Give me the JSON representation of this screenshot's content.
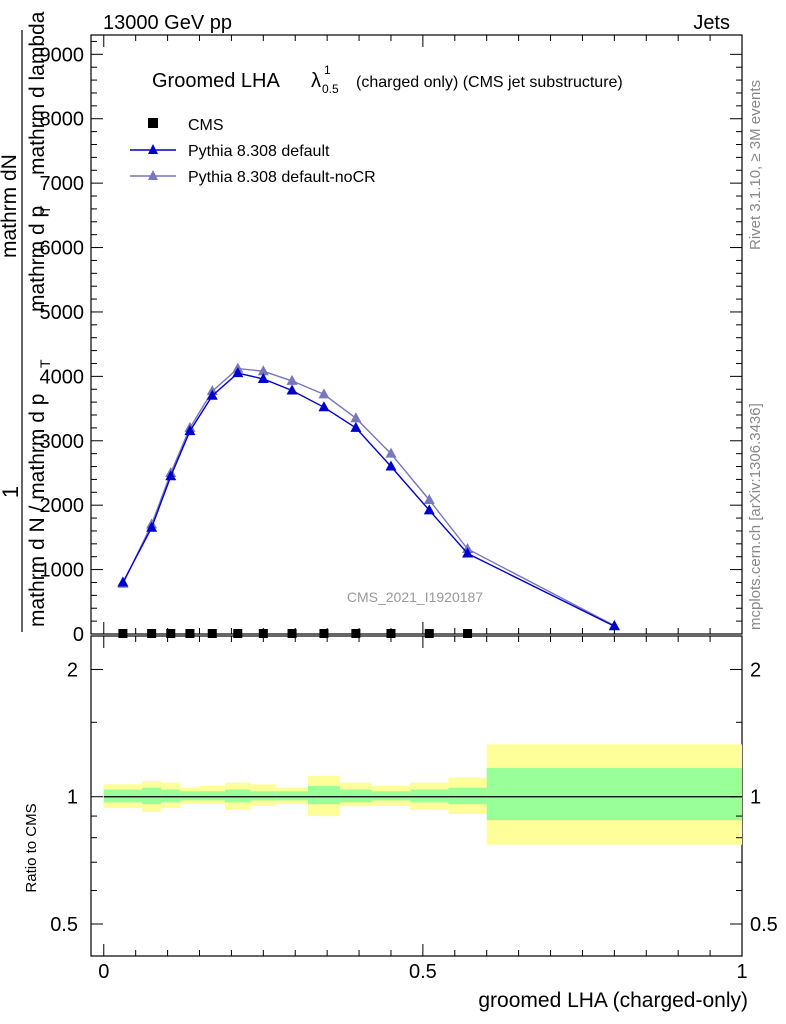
{
  "header": {
    "energy": "13000 GeV pp",
    "category": "Jets"
  },
  "right_labels": {
    "rivet": "Rivet 3.1.10, ≥ 3M events",
    "mcplots": "mcplots.cern.ch [arXiv:1306.3436]"
  },
  "colors": {
    "cms": "#000000",
    "default": "#0000cc",
    "nocr": "#7777bb",
    "band_inner": "#99ff99",
    "band_outer": "#ffff99"
  },
  "chart_data": [
    {
      "type": "line",
      "title_main": "Groomed LHA",
      "title_symbol": "λ",
      "title_sup": "1",
      "title_sub": "0.5",
      "title_rest": "(charged only) (CMS jet substructure)",
      "ylabel_top": "1",
      "ylabel_num": "mathrm dN",
      "ylabel_den1": "mathrm d N / mathrm d p",
      "ylabel_den2": "mathrm d p",
      "ylabel_den3": "mathrm d lambda",
      "ylabel_sub": "T",
      "watermark": "CMS_2021_I1920187",
      "xlim": [
        -0.02,
        1.0
      ],
      "ylim": [
        0,
        9300
      ],
      "yticks": [
        0,
        1000,
        2000,
        3000,
        4000,
        5000,
        6000,
        7000,
        8000,
        9000
      ],
      "ytick_labels": [
        "0",
        "1000",
        "2000",
        "3000",
        "4000",
        "5000",
        "6000",
        "7000",
        "8000",
        "9000"
      ],
      "xticks_major": [
        0,
        0.5,
        1
      ],
      "legend": [
        "CMS",
        "Pythia 8.308 default",
        "Pythia 8.308 default-noCR"
      ],
      "series": [
        {
          "name": "CMS",
          "marker": "square",
          "x": [
            0.03,
            0.075,
            0.105,
            0.135,
            0.17,
            0.21,
            0.25,
            0.295,
            0.345,
            0.395,
            0.45,
            0.51,
            0.57
          ],
          "y": [
            0,
            0,
            0,
            0,
            0,
            0,
            0,
            0,
            0,
            0,
            0,
            0,
            0
          ]
        },
        {
          "name": "Pythia 8.308 default",
          "marker": "triangle",
          "x": [
            0.03,
            0.075,
            0.105,
            0.135,
            0.17,
            0.21,
            0.25,
            0.295,
            0.345,
            0.395,
            0.45,
            0.51,
            0.57,
            0.8
          ],
          "y": [
            800,
            1650,
            2450,
            3150,
            3700,
            4050,
            3960,
            3780,
            3520,
            3200,
            2600,
            1920,
            1250,
            120
          ]
        },
        {
          "name": "Pythia 8.308 default-noCR",
          "marker": "triangle",
          "x": [
            0.03,
            0.075,
            0.105,
            0.135,
            0.17,
            0.21,
            0.25,
            0.295,
            0.345,
            0.395,
            0.45,
            0.51,
            0.57,
            0.8
          ],
          "y": [
            780,
            1700,
            2500,
            3200,
            3770,
            4120,
            4080,
            3930,
            3720,
            3350,
            2800,
            2080,
            1320,
            130
          ]
        }
      ]
    },
    {
      "type": "area",
      "ylabel": "Ratio to CMS",
      "xlabel": "groomed LHA (charged-only)",
      "xlim": [
        -0.02,
        1.0
      ],
      "ylim": [
        0.42,
        2.4
      ],
      "yscale": "log",
      "yticks": [
        0.5,
        1,
        2
      ],
      "ytick_labels": [
        "0.5",
        "1",
        "2"
      ],
      "xticks": [
        0,
        0.5,
        1
      ],
      "xtick_labels": [
        "0",
        "0.5",
        "1"
      ],
      "bins": [
        {
          "lo": 0.0,
          "hi": 0.06,
          "in_lo": 0.97,
          "in_hi": 1.04,
          "out_lo": 0.94,
          "out_hi": 1.07
        },
        {
          "lo": 0.06,
          "hi": 0.09,
          "in_lo": 0.96,
          "in_hi": 1.05,
          "out_lo": 0.92,
          "out_hi": 1.09
        },
        {
          "lo": 0.09,
          "hi": 0.12,
          "in_lo": 0.97,
          "in_hi": 1.04,
          "out_lo": 0.94,
          "out_hi": 1.08
        },
        {
          "lo": 0.12,
          "hi": 0.15,
          "in_lo": 0.98,
          "in_hi": 1.03,
          "out_lo": 0.96,
          "out_hi": 1.05
        },
        {
          "lo": 0.15,
          "hi": 0.19,
          "in_lo": 0.98,
          "in_hi": 1.03,
          "out_lo": 0.96,
          "out_hi": 1.06
        },
        {
          "lo": 0.19,
          "hi": 0.23,
          "in_lo": 0.97,
          "in_hi": 1.04,
          "out_lo": 0.93,
          "out_hi": 1.08
        },
        {
          "lo": 0.23,
          "hi": 0.27,
          "in_lo": 0.98,
          "in_hi": 1.03,
          "out_lo": 0.95,
          "out_hi": 1.07
        },
        {
          "lo": 0.27,
          "hi": 0.32,
          "in_lo": 0.98,
          "in_hi": 1.03,
          "out_lo": 0.96,
          "out_hi": 1.05
        },
        {
          "lo": 0.32,
          "hi": 0.37,
          "in_lo": 0.96,
          "in_hi": 1.06,
          "out_lo": 0.9,
          "out_hi": 1.12
        },
        {
          "lo": 0.37,
          "hi": 0.42,
          "in_lo": 0.97,
          "in_hi": 1.04,
          "out_lo": 0.95,
          "out_hi": 1.08
        },
        {
          "lo": 0.42,
          "hi": 0.48,
          "in_lo": 0.98,
          "in_hi": 1.03,
          "out_lo": 0.95,
          "out_hi": 1.06
        },
        {
          "lo": 0.48,
          "hi": 0.54,
          "in_lo": 0.97,
          "in_hi": 1.04,
          "out_lo": 0.93,
          "out_hi": 1.08
        },
        {
          "lo": 0.54,
          "hi": 0.6,
          "in_lo": 0.96,
          "in_hi": 1.05,
          "out_lo": 0.91,
          "out_hi": 1.11
        },
        {
          "lo": 0.6,
          "hi": 1.0,
          "in_lo": 0.88,
          "in_hi": 1.17,
          "out_lo": 0.77,
          "out_hi": 1.33
        }
      ]
    }
  ]
}
